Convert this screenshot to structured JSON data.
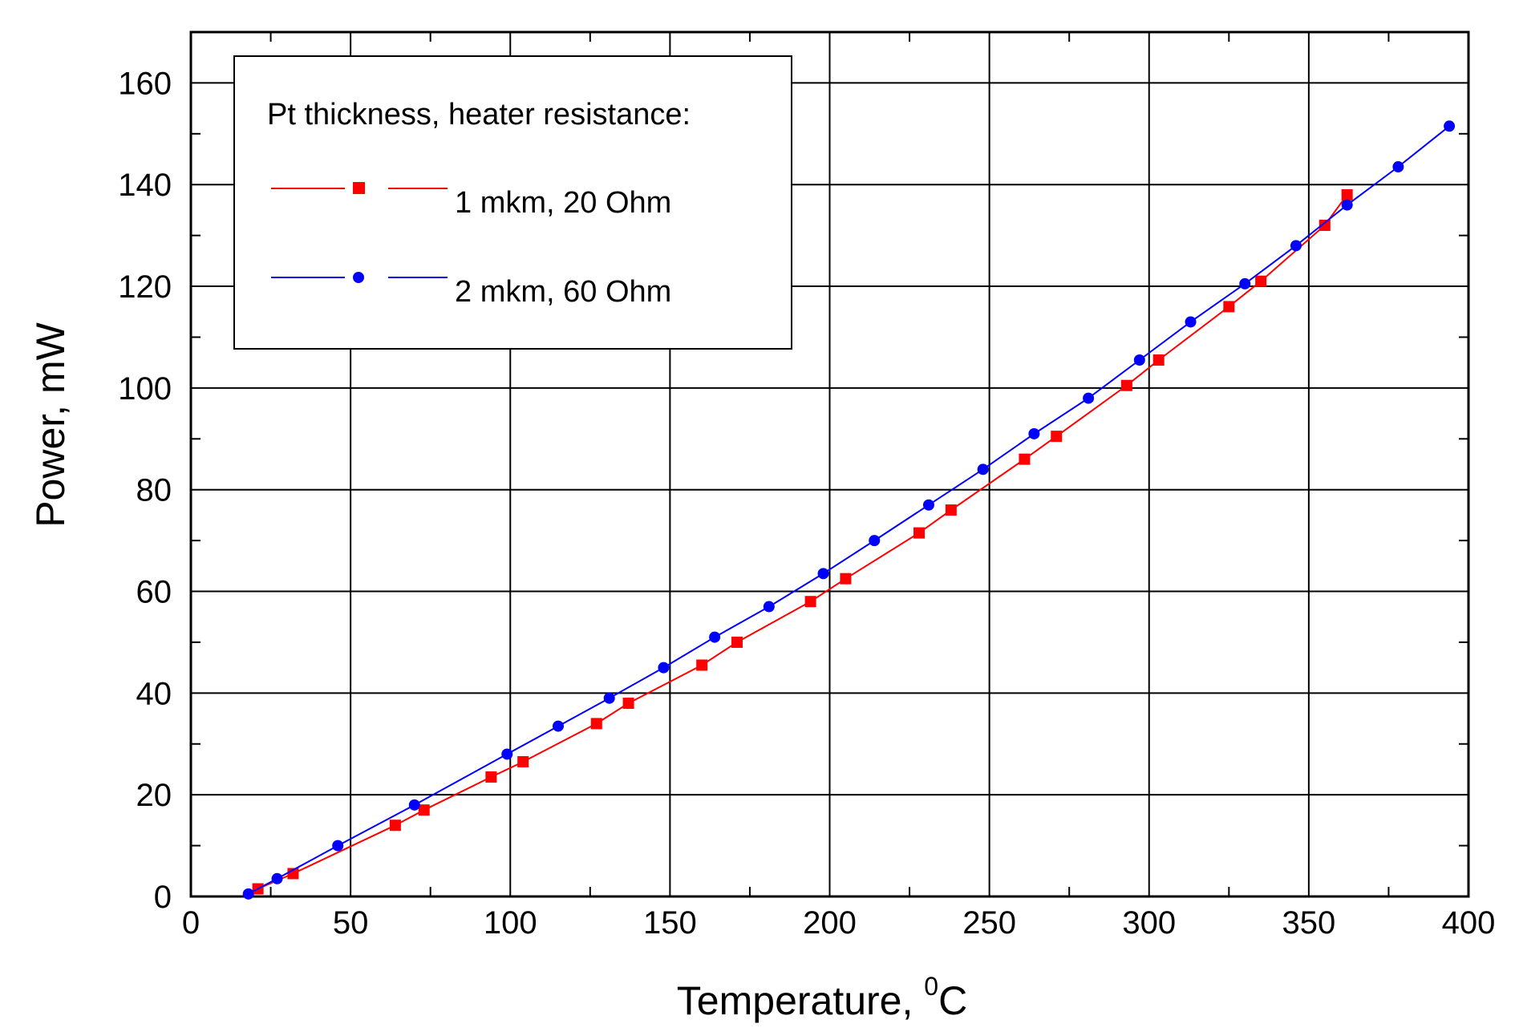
{
  "chart_data": {
    "type": "line",
    "title": "",
    "xlabel": "Temperature, ",
    "xlabel_superscript": "0",
    "xlabel_unit": "C",
    "ylabel": "Power, mW",
    "xlim": [
      0,
      400
    ],
    "ylim": [
      0,
      170
    ],
    "x_ticks": [
      0,
      50,
      100,
      150,
      200,
      250,
      300,
      350,
      400
    ],
    "y_ticks": [
      0,
      20,
      40,
      60,
      80,
      100,
      120,
      140,
      160
    ],
    "x_tick_labels": [
      "0",
      "50",
      "100",
      "150",
      "200",
      "250",
      "300",
      "350",
      "400"
    ],
    "y_tick_labels": [
      "0",
      "20",
      "40",
      "60",
      "80",
      "100",
      "120",
      "140",
      "160"
    ],
    "grid": true,
    "legend_title": "Pt thickness, heater resistance:",
    "legend_position": "top-left",
    "series": [
      {
        "name": "1 mkm, 20 Ohm",
        "color": "#ff0000",
        "marker": "square",
        "x": [
          21,
          32,
          64,
          73,
          94,
          104,
          127,
          137,
          160,
          171,
          194,
          205,
          228,
          238,
          261,
          271,
          293,
          303,
          325,
          335,
          355,
          362
        ],
        "y": [
          1.5,
          4.5,
          14,
          17,
          23.5,
          26.5,
          34,
          38,
          45.5,
          50,
          58,
          62.5,
          71.5,
          76,
          86,
          90.5,
          100.5,
          105.5,
          116,
          121,
          132,
          138
        ]
      },
      {
        "name": "2 mkm, 60 Ohm",
        "color": "#0000ff",
        "marker": "circle",
        "x": [
          18,
          27,
          46,
          70,
          99,
          115,
          131,
          148,
          164,
          181,
          198,
          214,
          231,
          248,
          264,
          281,
          297,
          313,
          330,
          346,
          362,
          378,
          394
        ],
        "y": [
          0.5,
          3.5,
          10,
          18,
          28,
          33.5,
          39,
          45,
          51,
          57,
          63.5,
          70,
          77,
          84,
          91,
          98,
          105.5,
          113,
          120.5,
          128,
          136,
          143.5,
          151.5
        ]
      }
    ]
  }
}
